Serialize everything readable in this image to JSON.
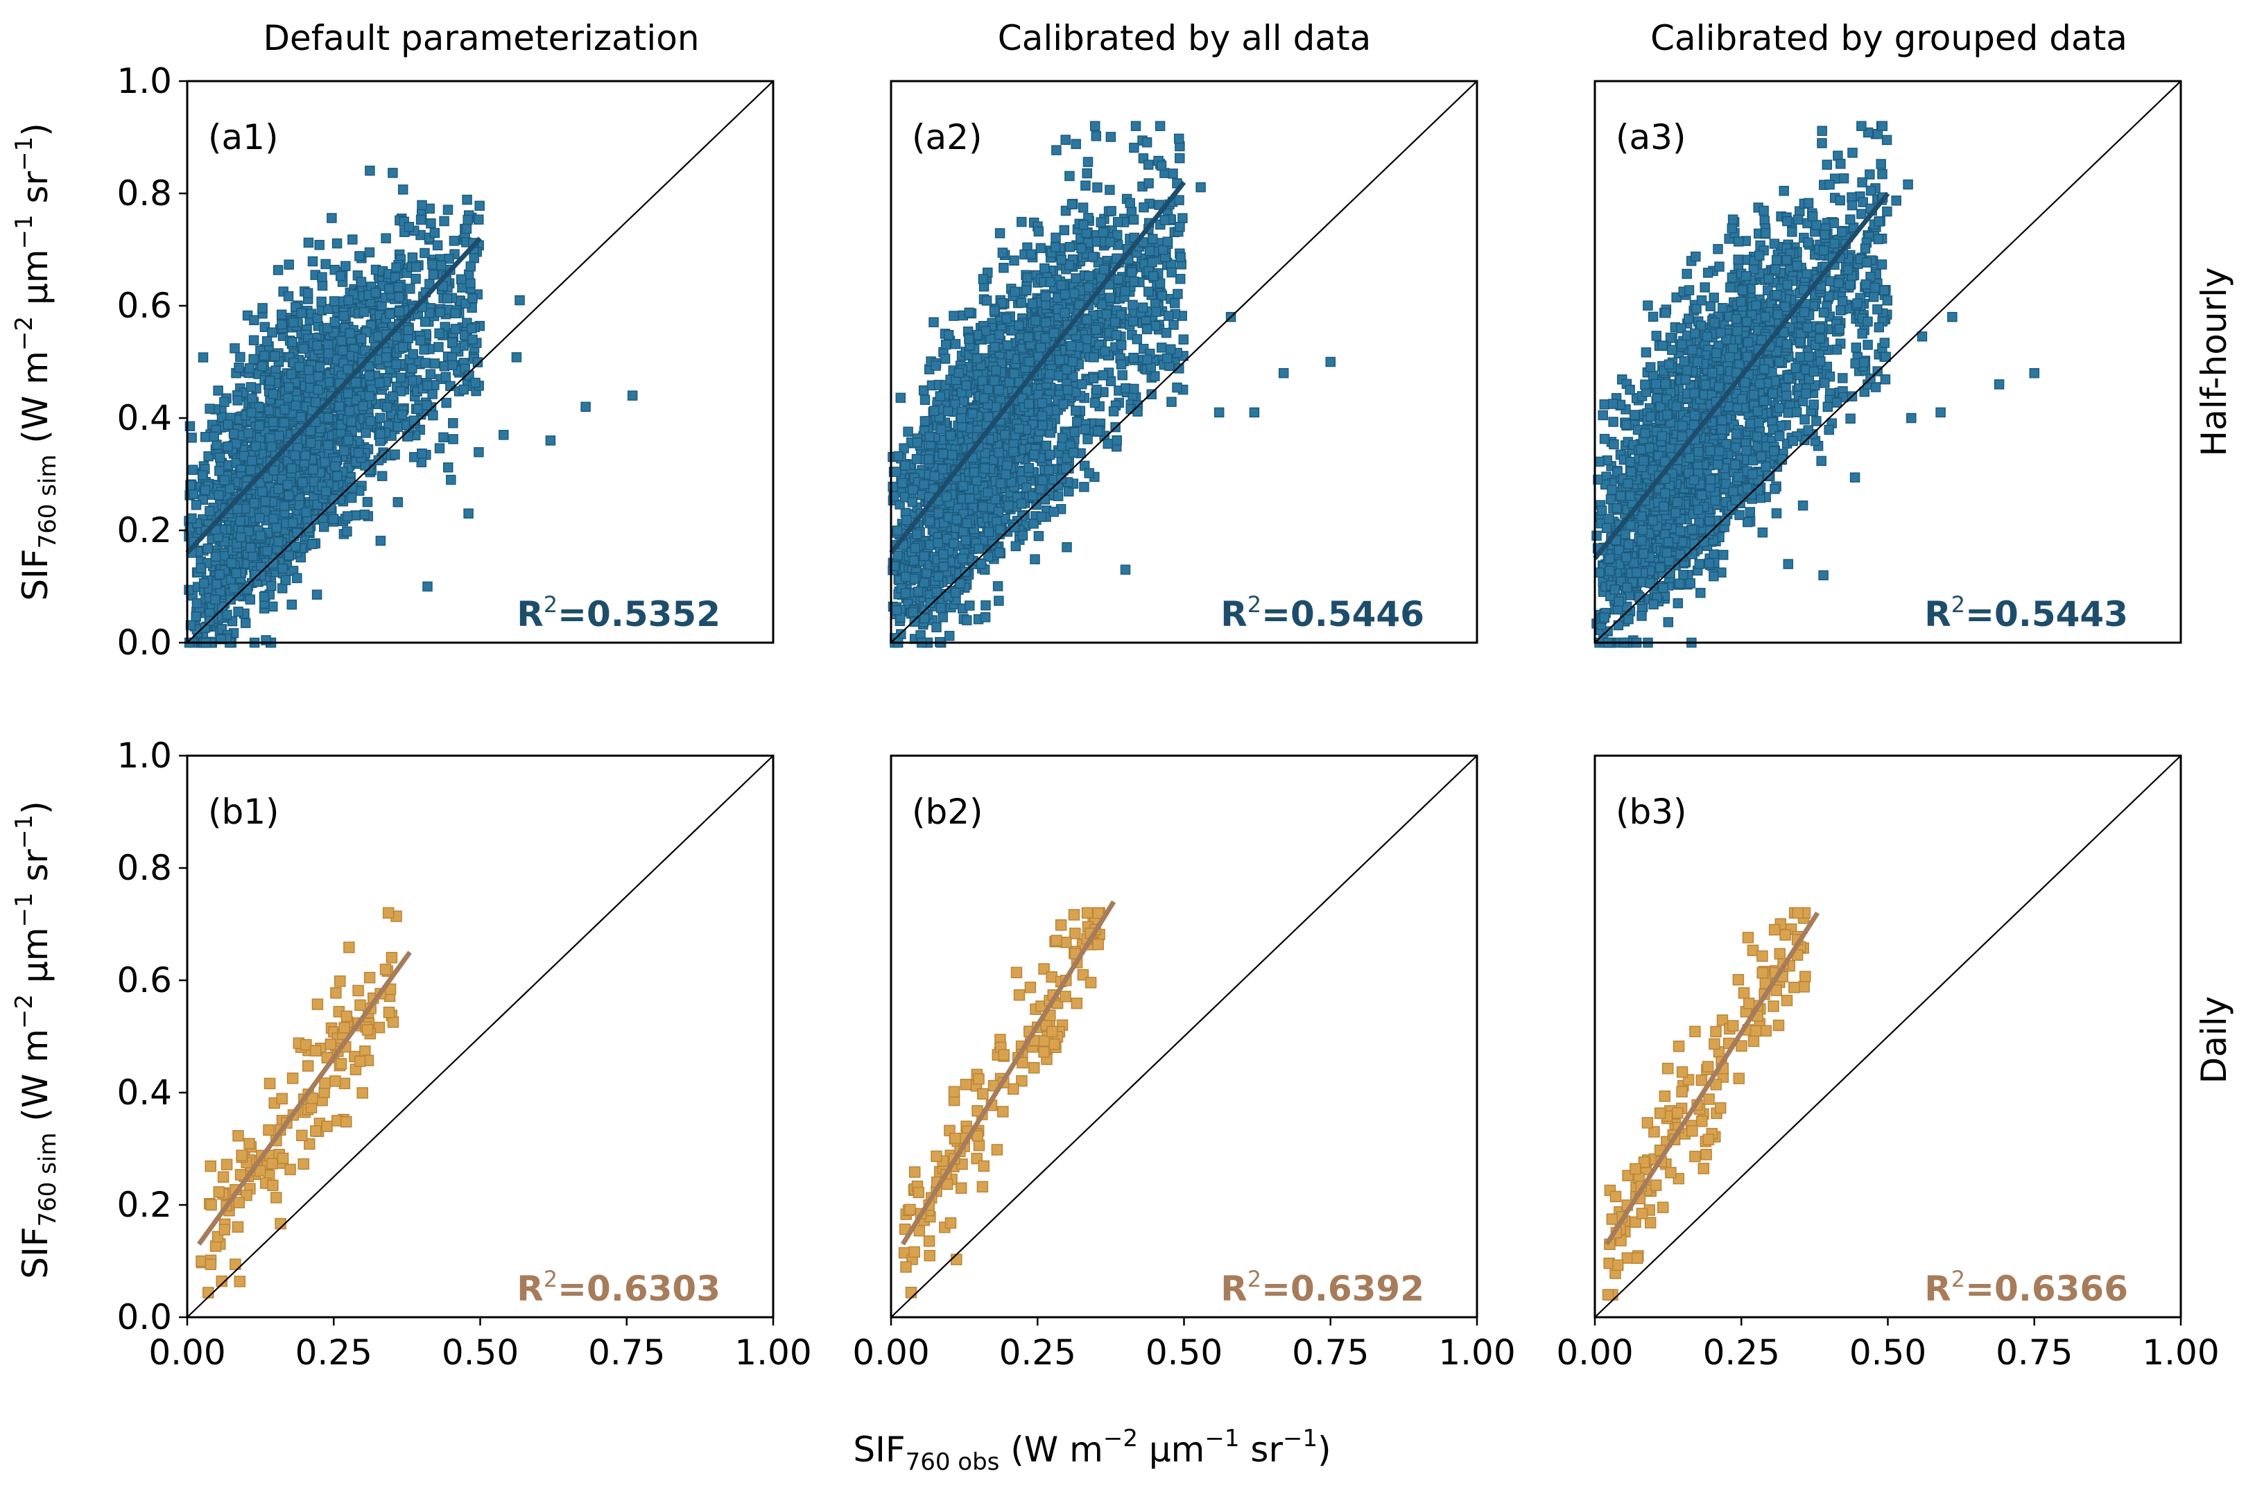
{
  "figure": {
    "column_titles": [
      "Default parameterization",
      "Calibrated by all data",
      "Calibrated by grouped data"
    ],
    "row_labels": [
      "Half-hourly",
      "Daily"
    ],
    "y_label": {
      "base": "SIF",
      "sub": "760 sim",
      "unit_prefix": " (W m",
      "exp1": "−2",
      "mid1": " μm",
      "exp2": "−1",
      "mid2": " sr",
      "exp3": "−1",
      "close": ")"
    },
    "x_label": {
      "base": "SIF",
      "sub": "760 obs",
      "unit_prefix": " (W m",
      "exp1": "−2",
      "mid1": " μm",
      "exp2": "−1",
      "mid2": " sr",
      "exp3": "−1",
      "close": ")"
    },
    "x_tick_labels": [
      "0.00",
      "0.25",
      "0.50",
      "0.75",
      "1.00"
    ],
    "y_tick_labels": [
      "0.0",
      "0.2",
      "0.4",
      "0.6",
      "0.8",
      "1.0"
    ],
    "r2_prefix": "R",
    "r2_exp": "2"
  },
  "colors": {
    "half_hourly_marker": "#2c77a0",
    "half_hourly_edge": "#1d5a7c",
    "half_hourly_fit": "#1e4d6b",
    "half_hourly_r2": "#1e4d6b",
    "daily_marker": "#d9a24e",
    "daily_edge": "#b9853a",
    "daily_fit": "#a67c5b",
    "daily_r2": "#a67c5b",
    "one_to_one": "#000000"
  },
  "chart_data": [
    {
      "type": "scatter",
      "panel": "(a1)",
      "row": "Half-hourly",
      "column": "Default parameterization",
      "r2": "=0.5352",
      "xlim": [
        0,
        1
      ],
      "ylim": [
        0,
        1
      ],
      "n_points": 2200,
      "fit_line": {
        "x": [
          0.0,
          0.5
        ],
        "y": [
          0.16,
          0.72
        ]
      },
      "one_to_one": true,
      "outliers": [
        [
          0.68,
          0.42
        ],
        [
          0.76,
          0.44
        ],
        [
          0.62,
          0.36
        ],
        [
          0.54,
          0.37
        ],
        [
          0.45,
          0.29
        ],
        [
          0.48,
          0.23
        ],
        [
          0.41,
          0.1
        ]
      ]
    },
    {
      "type": "scatter",
      "panel": "(a2)",
      "row": "Half-hourly",
      "column": "Calibrated by all data",
      "r2": "=0.5446",
      "xlim": [
        0,
        1
      ],
      "ylim": [
        0,
        1
      ],
      "n_points": 2200,
      "fit_line": {
        "x": [
          0.0,
          0.5
        ],
        "y": [
          0.16,
          0.82
        ]
      },
      "one_to_one": true,
      "outliers": [
        [
          0.75,
          0.5
        ],
        [
          0.67,
          0.48
        ],
        [
          0.62,
          0.41
        ],
        [
          0.56,
          0.41
        ],
        [
          0.58,
          0.58
        ],
        [
          0.4,
          0.13
        ],
        [
          0.3,
          0.17
        ]
      ]
    },
    {
      "type": "scatter",
      "panel": "(a3)",
      "row": "Half-hourly",
      "column": "Calibrated by grouped data",
      "r2": "=0.5443",
      "xlim": [
        0,
        1
      ],
      "ylim": [
        0,
        1
      ],
      "n_points": 2200,
      "fit_line": {
        "x": [
          0.0,
          0.5
        ],
        "y": [
          0.15,
          0.8
        ]
      },
      "one_to_one": true,
      "outliers": [
        [
          0.75,
          0.48
        ],
        [
          0.69,
          0.46
        ],
        [
          0.59,
          0.41
        ],
        [
          0.54,
          0.4
        ],
        [
          0.61,
          0.58
        ],
        [
          0.39,
          0.12
        ],
        [
          0.33,
          0.14
        ]
      ]
    },
    {
      "type": "scatter",
      "panel": "(b1)",
      "row": "Daily",
      "column": "Default parameterization",
      "r2": "=0.6303",
      "xlim": [
        0,
        1
      ],
      "ylim": [
        0,
        1
      ],
      "n_points": 150,
      "fit_line": {
        "x": [
          0.02,
          0.38
        ],
        "y": [
          0.13,
          0.65
        ]
      },
      "one_to_one": true
    },
    {
      "type": "scatter",
      "panel": "(b2)",
      "row": "Daily",
      "column": "Calibrated by all data",
      "r2": "=0.6392",
      "xlim": [
        0,
        1
      ],
      "ylim": [
        0,
        1
      ],
      "n_points": 150,
      "fit_line": {
        "x": [
          0.02,
          0.38
        ],
        "y": [
          0.13,
          0.74
        ]
      },
      "one_to_one": true
    },
    {
      "type": "scatter",
      "panel": "(b3)",
      "row": "Daily",
      "column": "Calibrated by grouped data",
      "r2": "=0.6366",
      "xlim": [
        0,
        1
      ],
      "ylim": [
        0,
        1
      ],
      "n_points": 150,
      "fit_line": {
        "x": [
          0.02,
          0.38
        ],
        "y": [
          0.13,
          0.72
        ]
      },
      "one_to_one": true
    }
  ]
}
